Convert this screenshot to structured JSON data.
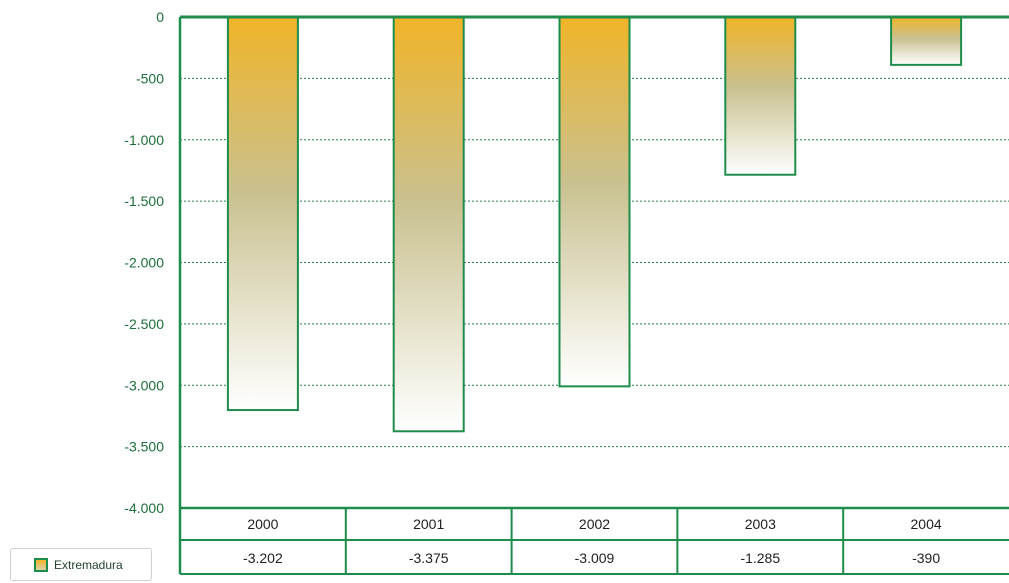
{
  "colors": {
    "axis": "#1e8c4a",
    "text": "#1e6e3a",
    "bar_top": "#f0b428",
    "bar_mid": "#c9c190",
    "bar_bottom": "#ffffff",
    "grid": "#2e7d4f"
  },
  "chart_data": {
    "type": "bar",
    "categories": [
      "2000",
      "2001",
      "2002",
      "2003",
      "2004"
    ],
    "series": [
      {
        "name": "Extremadura",
        "values": [
          -3202,
          -3375,
          -3009,
          -1285,
          -390
        ]
      }
    ],
    "value_labels": [
      "-3.202",
      "-3.375",
      "-3.009",
      "-1.285",
      "-390"
    ],
    "y_ticks": [
      0,
      -500,
      -1000,
      -1500,
      -2000,
      -2500,
      -3000,
      -3500,
      -4000
    ],
    "y_tick_labels": [
      "0",
      "-500",
      "-1.000",
      "-1.500",
      "-2.000",
      "-2.500",
      "-3.000",
      "-3.500",
      "-4.000"
    ],
    "ylim": [
      -4000,
      0
    ],
    "grid": true,
    "legend_position": "bottom-left",
    "title": "",
    "xlabel": "",
    "ylabel": ""
  },
  "legend": {
    "label": "Extremadura"
  }
}
